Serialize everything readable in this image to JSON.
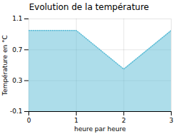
{
  "chart_data": {
    "type": "area",
    "title": "Evolution de la température",
    "xlabel": "heure par heure",
    "ylabel": "Température en °C",
    "x": [
      0,
      1,
      2,
      3
    ],
    "values": [
      0.95,
      0.95,
      0.45,
      0.95
    ],
    "color": "#5bbcd6",
    "line_style": "dotted",
    "xlim": [
      0,
      3
    ],
    "xticks": [
      0,
      1,
      2,
      3
    ],
    "ylim": [
      -0.1,
      1.1
    ],
    "yticks": [
      -0.1,
      0.3,
      0.7,
      1.1
    ],
    "grid": true
  }
}
